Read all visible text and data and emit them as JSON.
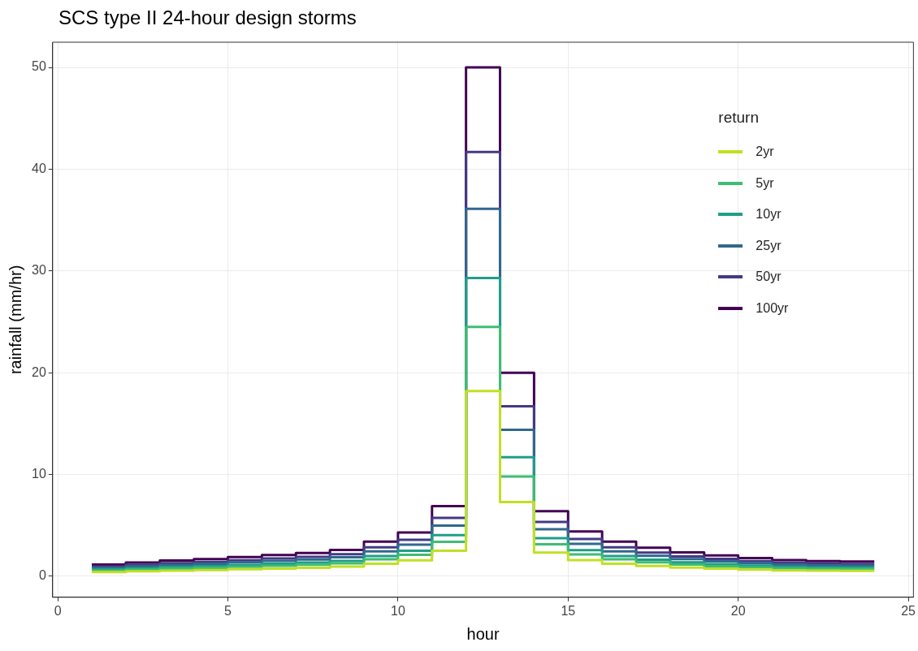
{
  "chart_data": {
    "type": "step",
    "title": "SCS type II 24-hour design storms",
    "xlabel": "hour",
    "ylabel": "rainfall (mm/hr)",
    "legend_title": "return",
    "legend": "top right",
    "grid": true,
    "marker": "none",
    "line_style": "solid",
    "x": [
      1,
      2,
      3,
      4,
      5,
      6,
      7,
      8,
      9,
      10,
      11,
      12,
      13,
      14,
      15,
      16,
      17,
      18,
      19,
      20,
      21,
      22,
      23,
      24
    ],
    "xlim": [
      -0.15,
      25.15
    ],
    "xticks": [
      0,
      5,
      10,
      15,
      20,
      25
    ],
    "ylim": [
      -2.06,
      52.48
    ],
    "yticks": [
      0,
      10,
      20,
      30,
      40,
      50
    ],
    "series": [
      {
        "name": "2yr",
        "color": "#c2df23",
        "values": [
          0.42,
          0.49,
          0.56,
          0.62,
          0.69,
          0.76,
          0.84,
          0.95,
          1.24,
          1.57,
          2.51,
          18.2,
          7.3,
          2.33,
          1.6,
          1.24,
          1.02,
          0.86,
          0.75,
          0.66,
          0.58,
          0.55,
          0.53,
          0.53
        ]
      },
      {
        "name": "5yr",
        "color": "#3fbc73",
        "values": [
          0.56,
          0.66,
          0.76,
          0.83,
          0.93,
          1.03,
          1.13,
          1.27,
          1.67,
          2.11,
          3.38,
          24.5,
          9.8,
          3.14,
          2.16,
          1.67,
          1.37,
          1.15,
          1.0,
          0.88,
          0.78,
          0.74,
          0.71,
          0.71
        ]
      },
      {
        "name": "10yr",
        "color": "#1f9e89",
        "values": [
          0.67,
          0.79,
          0.91,
          1.0,
          1.11,
          1.23,
          1.35,
          1.52,
          1.99,
          2.52,
          4.04,
          29.3,
          11.7,
          3.75,
          2.58,
          1.99,
          1.64,
          1.38,
          1.2,
          1.05,
          0.94,
          0.88,
          0.85,
          0.85
        ]
      },
      {
        "name": "25yr",
        "color": "#31688e",
        "values": [
          0.83,
          0.97,
          1.12,
          1.23,
          1.37,
          1.52,
          1.66,
          1.88,
          2.45,
          3.1,
          4.98,
          36.1,
          14.4,
          4.62,
          3.18,
          2.45,
          2.02,
          1.7,
          1.48,
          1.3,
          1.16,
          1.08,
          1.05,
          1.05
        ]
      },
      {
        "name": "50yr",
        "color": "#443a83",
        "values": [
          0.96,
          1.13,
          1.29,
          1.42,
          1.58,
          1.75,
          1.92,
          2.17,
          2.84,
          3.59,
          5.75,
          41.7,
          16.7,
          5.34,
          3.67,
          2.84,
          2.34,
          1.96,
          1.71,
          1.5,
          1.33,
          1.25,
          1.21,
          1.21
        ]
      },
      {
        "name": "100yr",
        "color": "#440154",
        "values": [
          1.15,
          1.35,
          1.55,
          1.7,
          1.9,
          2.1,
          2.3,
          2.6,
          3.4,
          4.3,
          6.9,
          50,
          20,
          6.4,
          4.4,
          3.4,
          2.8,
          2.35,
          2.05,
          1.8,
          1.6,
          1.5,
          1.45,
          1.45
        ]
      }
    ]
  }
}
